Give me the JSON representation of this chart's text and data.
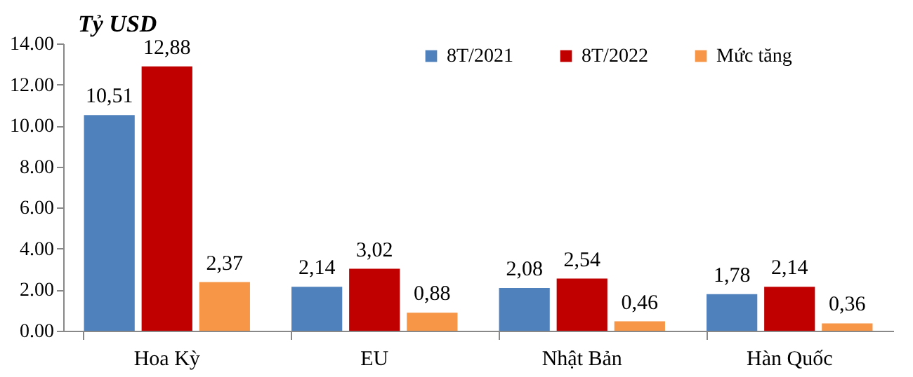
{
  "chart_data": {
    "type": "bar",
    "ylabel": "Tỷ USD",
    "categories": [
      "Hoa Kỳ",
      "EU",
      "Nhật Bản",
      "Hàn Quốc"
    ],
    "series": [
      {
        "name": "8T/2021",
        "color": "#4f81bd",
        "values": [
          10.51,
          2.14,
          2.08,
          1.78
        ],
        "value_labels": [
          "10,51",
          "2,14",
          "2,08",
          "1,78"
        ]
      },
      {
        "name": "8T/2022",
        "color": "#c00000",
        "values": [
          12.88,
          3.02,
          2.54,
          2.14
        ],
        "value_labels": [
          "12,88",
          "3,02",
          "2,54",
          "2,14"
        ]
      },
      {
        "name": "Mức tăng",
        "color": "#f79646",
        "values": [
          2.37,
          0.88,
          0.46,
          0.36
        ],
        "value_labels": [
          "2,37",
          "0,88",
          "0,46",
          "0,36"
        ]
      }
    ],
    "ylim": [
      0,
      14
    ],
    "yticks": [
      {
        "value": 0,
        "label": "0.00"
      },
      {
        "value": 2,
        "label": "2.00"
      },
      {
        "value": 4,
        "label": "4.00"
      },
      {
        "value": 6,
        "label": "6.00"
      },
      {
        "value": 8,
        "label": "8.00"
      },
      {
        "value": 10,
        "label": "10.00"
      },
      {
        "value": 12,
        "label": "12.00"
      },
      {
        "value": 14,
        "label": "14.00"
      }
    ],
    "grid": false,
    "legend": "top right"
  }
}
